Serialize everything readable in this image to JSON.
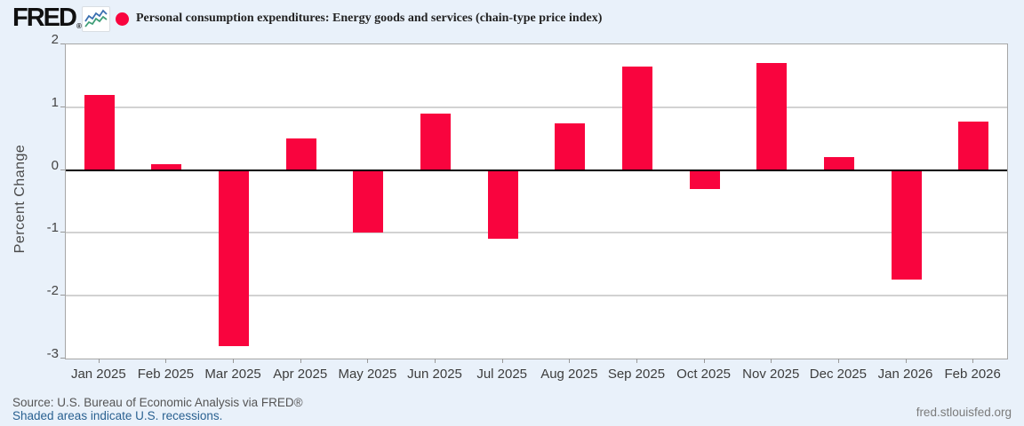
{
  "header": {
    "logo_text": "FRED",
    "logo_reg": "®",
    "sparkline_icon": "line-chart-icon"
  },
  "chart_data": {
    "type": "bar",
    "title": "Personal consumption expenditures: Energy goods and services (chain-type price index)",
    "categories": [
      "Jan 2025",
      "Feb 2025",
      "Mar 2025",
      "Apr 2025",
      "May 2025",
      "Jun 2025",
      "Jul 2025",
      "Aug 2025",
      "Sep 2025",
      "Oct 2025",
      "Nov 2025",
      "Dec 2025",
      "Jan 2026",
      "Feb 2026"
    ],
    "values": [
      1.2,
      0.1,
      -2.8,
      0.5,
      -1.0,
      0.9,
      -1.1,
      0.75,
      1.65,
      -0.3,
      1.7,
      0.2,
      -1.75,
      0.77
    ],
    "ylabel": "Percent Change",
    "xlabel": "",
    "ylim": [
      -3,
      2
    ],
    "yticks": [
      2,
      1,
      0,
      -1,
      -2,
      -3
    ],
    "gridline_values": [
      1,
      -1,
      -2
    ],
    "zero_line": 0,
    "grid": "on",
    "legend_position": "top",
    "bar_color": "#f9043e"
  },
  "colors": {
    "background": "#e9f1fa",
    "plot_background": "#ffffff",
    "bar": "#f9043e",
    "zero_line": "#000000",
    "gridline": "#d2d2d2",
    "link_blue": "#2a6191"
  },
  "footer": {
    "source": "Source: U.S. Bureau of Economic Analysis via FRED®",
    "recession_note": "Shaded areas indicate U.S. recessions.",
    "site": "fred.stlouisfed.org"
  }
}
